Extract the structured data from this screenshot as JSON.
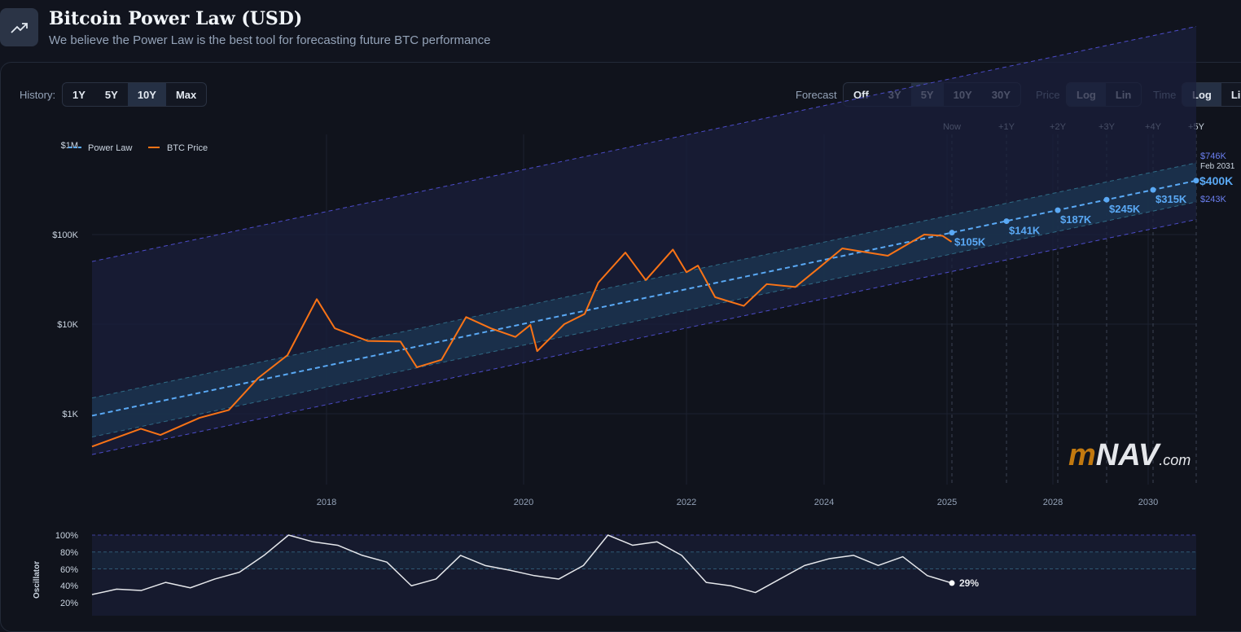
{
  "header": {
    "title": "Bitcoin Power Law (USD)",
    "subtitle": "We believe the Power Law is the best tool for forecasting future BTC performance",
    "icon": "trending-up-icon"
  },
  "controls": {
    "history_label": "History:",
    "history_options": [
      "1Y",
      "5Y",
      "10Y",
      "Max"
    ],
    "history_selected": "10Y",
    "forecast_label": "Forecast",
    "forecast_options": [
      "Off",
      "3Y",
      "5Y",
      "10Y",
      "30Y"
    ],
    "forecast_selected": "5Y",
    "price_label": "Price",
    "price_options": [
      "Log",
      "Lin"
    ],
    "price_selected": "Log",
    "time_label": "Time",
    "time_options": [
      "Log",
      "Lin"
    ],
    "time_selected": "Log"
  },
  "watermark": {
    "m": "m",
    "nav": "NAV",
    "com": ".com"
  },
  "colors": {
    "accent": "#5aa9f5",
    "btc": "#f97316",
    "band_line": "#5b5bd6",
    "osc": "#e5e7eb"
  },
  "chart_data": [
    {
      "type": "line",
      "title": "Bitcoin Power Law (USD)",
      "yscale": "log",
      "ylim": [
        300,
        1000000
      ],
      "y_ticks": [
        {
          "label": "$1M",
          "value": 1000000
        },
        {
          "label": "$100K",
          "value": 100000
        },
        {
          "label": "$10K",
          "value": 10000
        },
        {
          "label": "$1K",
          "value": 1000
        }
      ],
      "x_ticks": [
        "2018",
        "2020",
        "2022",
        "2024",
        "2025",
        "2028",
        "2030"
      ],
      "legend": [
        {
          "name": "Power Law",
          "style": "dashed"
        },
        {
          "name": "BTC Price",
          "style": "solid"
        }
      ],
      "legend_position": "top-left",
      "forecast_ticks": [
        "Now",
        "+1Y",
        "+2Y",
        "+3Y",
        "+4Y",
        "+5Y"
      ],
      "forecast_points": [
        {
          "label": "$105K",
          "value": 105000
        },
        {
          "label": "$141K",
          "value": 141000
        },
        {
          "label": "$187K",
          "value": 187000
        },
        {
          "label": "$245K",
          "value": 245000
        },
        {
          "label": "$315K",
          "value": 315000
        },
        {
          "label": "$400K",
          "value": 400000
        }
      ],
      "end_upper_label": "$746K",
      "end_upper_value": 746000,
      "end_lower_label": "$243K",
      "end_lower_value": 243000,
      "end_date_label": "Feb 2031",
      "power_law": {
        "start": 950,
        "end": 400000
      },
      "bands": {
        "upper_outer_start": 50000,
        "upper_inner_start": 1500,
        "lower_inner_start": 550,
        "lower_outer_start": 350
      },
      "btc_series": [
        {
          "date": "2016-01",
          "value": 430
        },
        {
          "date": "2016-06",
          "value": 680
        },
        {
          "date": "2016-08",
          "value": 580
        },
        {
          "date": "2016-12",
          "value": 900
        },
        {
          "date": "2017-03",
          "value": 1100
        },
        {
          "date": "2017-06",
          "value": 2500
        },
        {
          "date": "2017-09",
          "value": 4500
        },
        {
          "date": "2017-12",
          "value": 19000
        },
        {
          "date": "2018-02",
          "value": 9000
        },
        {
          "date": "2018-06",
          "value": 6500
        },
        {
          "date": "2018-10",
          "value": 6400
        },
        {
          "date": "2018-12",
          "value": 3300
        },
        {
          "date": "2019-03",
          "value": 4000
        },
        {
          "date": "2019-06",
          "value": 12000
        },
        {
          "date": "2019-09",
          "value": 9000
        },
        {
          "date": "2019-12",
          "value": 7200
        },
        {
          "date": "2020-02",
          "value": 9800
        },
        {
          "date": "2020-03",
          "value": 5000
        },
        {
          "date": "2020-07",
          "value": 10000
        },
        {
          "date": "2020-10",
          "value": 13000
        },
        {
          "date": "2020-12",
          "value": 29000
        },
        {
          "date": "2021-04",
          "value": 63000
        },
        {
          "date": "2021-07",
          "value": 31000
        },
        {
          "date": "2021-11",
          "value": 68000
        },
        {
          "date": "2022-01",
          "value": 38000
        },
        {
          "date": "2022-03",
          "value": 45000
        },
        {
          "date": "2022-06",
          "value": 20000
        },
        {
          "date": "2022-11",
          "value": 16000
        },
        {
          "date": "2023-03",
          "value": 28000
        },
        {
          "date": "2023-08",
          "value": 26000
        },
        {
          "date": "2023-12",
          "value": 42000
        },
        {
          "date": "2024-03",
          "value": 70000
        },
        {
          "date": "2024-08",
          "value": 58000
        },
        {
          "date": "2024-12",
          "value": 100000
        },
        {
          "date": "2025-02",
          "value": 97000
        },
        {
          "date": "2025-03",
          "value": 83000
        }
      ]
    },
    {
      "type": "line",
      "title": "Oscillator",
      "ylabel": "Oscillator",
      "ylim": [
        0,
        100
      ],
      "y_ticks": [
        "100%",
        "80%",
        "60%",
        "40%",
        "20%"
      ],
      "current_label": "29%",
      "current_value": 29,
      "series_values": [
        12,
        20,
        18,
        30,
        22,
        35,
        45,
        70,
        100,
        90,
        85,
        70,
        60,
        25,
        35,
        70,
        55,
        48,
        40,
        35,
        55,
        100,
        85,
        90,
        70,
        30,
        25,
        15,
        35,
        55,
        65,
        70,
        55,
        68,
        40,
        29
      ]
    }
  ]
}
